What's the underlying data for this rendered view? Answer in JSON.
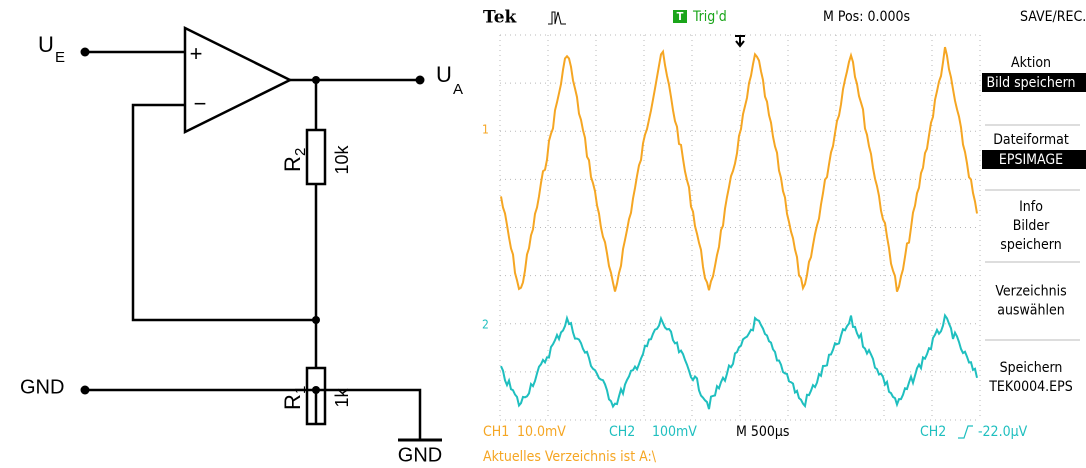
{
  "circuit": {
    "input": {
      "symbol": "U",
      "subscript": "E"
    },
    "output": {
      "symbol": "U",
      "subscript": "A"
    },
    "opamp": {
      "plus": "+",
      "minus": "−"
    },
    "r2": {
      "symbol": "R",
      "subscript": "2",
      "value": "10k"
    },
    "r1": {
      "symbol": "R",
      "subscript": "1",
      "value": "1k"
    },
    "gnd_left": "GND",
    "gnd_symbol": "GND"
  },
  "scope": {
    "header": {
      "brand": "Tek",
      "trig_icon": "T",
      "trig_status": "Trig'd",
      "mpos": "M Pos: 0.000s",
      "menu_title": "SAVE/REC."
    },
    "channel_markers": [
      "1",
      "2"
    ],
    "menu": [
      {
        "title": "Aktion",
        "value": "Bild speichern"
      },
      {
        "title": "Dateiformat",
        "value": "EPSIMAGE"
      },
      {
        "lines": [
          "Info",
          "Bilder",
          "speichern"
        ]
      },
      {
        "lines": [
          "Verzeichnis",
          "auswählen"
        ]
      },
      {
        "lines": [
          "Speichern",
          "TEK0004.EPS"
        ]
      }
    ],
    "status": {
      "ch1": "CH1",
      "ch1_scale": "10.0mV",
      "ch2": "CH2",
      "ch2_scale": "100mV",
      "timebase": "M 500µs",
      "trig_source": "CH2",
      "trig_level": "-22.0µV"
    },
    "footer": "Aktuelles Verzeichnis ist A:\\"
  }
}
